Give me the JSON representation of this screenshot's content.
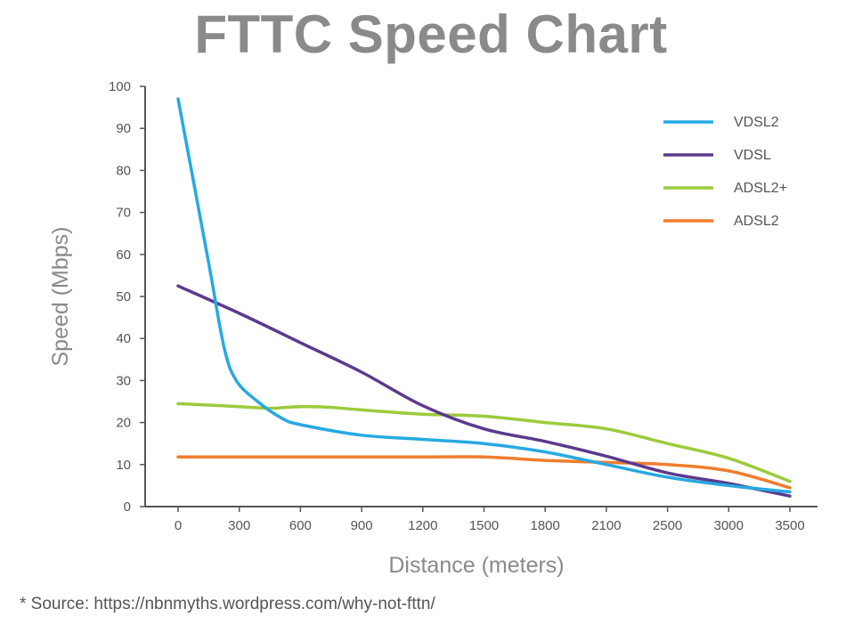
{
  "source_note": "* Source: https://nbnmyths.wordpress.com/why-not-fttn/",
  "chart_data": {
    "type": "line",
    "title": "FTTC Speed Chart",
    "xlabel": "Distance (meters)",
    "ylabel": "Speed (Mbps)",
    "x_categories": [
      "0",
      "300",
      "600",
      "900",
      "1200",
      "1500",
      "1800",
      "2100",
      "2500",
      "3000",
      "3500"
    ],
    "ylim": [
      0,
      100
    ],
    "yticks": [
      0,
      10,
      20,
      30,
      40,
      50,
      60,
      70,
      80,
      90,
      100
    ],
    "grid": false,
    "legend_position": "top-right",
    "series": [
      {
        "name": "VDSL2",
        "color": "#27a9e1",
        "points": [
          [
            0,
            97
          ],
          [
            0.5,
            58
          ],
          [
            0.75,
            38
          ],
          [
            0.95,
            30
          ],
          [
            1.3,
            25
          ],
          [
            1.7,
            21
          ],
          [
            2,
            19.5
          ],
          [
            3,
            17
          ],
          [
            4,
            16
          ],
          [
            5,
            15
          ],
          [
            6,
            13
          ],
          [
            7,
            10
          ],
          [
            8,
            7
          ],
          [
            9,
            5
          ],
          [
            10,
            3.5
          ]
        ]
      },
      {
        "name": "VDSL",
        "color": "#5b3a8e",
        "points": [
          [
            0,
            52.5
          ],
          [
            1,
            46
          ],
          [
            2,
            39
          ],
          [
            3,
            32
          ],
          [
            4,
            24
          ],
          [
            5,
            18.5
          ],
          [
            6,
            15.5
          ],
          [
            7,
            12
          ],
          [
            8,
            8
          ],
          [
            9,
            5.5
          ],
          [
            10,
            2.5
          ]
        ]
      },
      {
        "name": "ADSL2+",
        "color": "#9ccb3b",
        "points": [
          [
            0,
            24.5
          ],
          [
            1,
            23.8
          ],
          [
            1.5,
            23.4
          ],
          [
            2,
            23.8
          ],
          [
            2.5,
            23.6
          ],
          [
            3,
            23
          ],
          [
            4,
            22
          ],
          [
            5,
            21.5
          ],
          [
            6,
            20
          ],
          [
            7,
            18.5
          ],
          [
            8,
            15
          ],
          [
            9,
            11.5
          ],
          [
            10,
            6
          ]
        ]
      },
      {
        "name": "ADSL2",
        "color": "#f07d2d",
        "points": [
          [
            0,
            11.8
          ],
          [
            1,
            11.8
          ],
          [
            2,
            11.8
          ],
          [
            3,
            11.8
          ],
          [
            4,
            11.8
          ],
          [
            5,
            11.8
          ],
          [
            6,
            11
          ],
          [
            7,
            10.5
          ],
          [
            8,
            10
          ],
          [
            9,
            8.5
          ],
          [
            10,
            4.5
          ]
        ]
      }
    ]
  }
}
